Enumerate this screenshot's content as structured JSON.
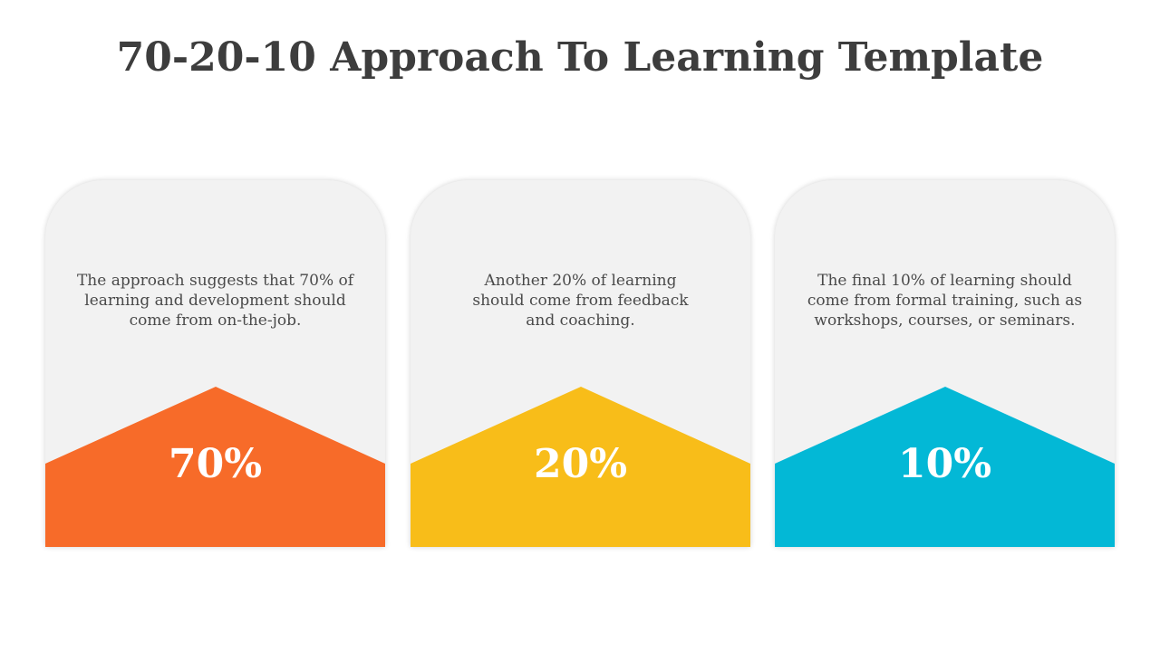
{
  "title": "70-20-10 Approach To Learning Template",
  "cards": [
    {
      "text": "The approach suggests that 70% of learning and development should come from on-the-job.",
      "percent": "70%",
      "color": "#f76b29"
    },
    {
      "text": "Another 20% of learning should come from feedback and coaching.",
      "percent": "20%",
      "color": "#f8bd19"
    },
    {
      "text": "The final 10% of learning should come from formal training, such as workshops, courses, or seminars.",
      "percent": "10%",
      "color": "#03b8d6"
    }
  ]
}
